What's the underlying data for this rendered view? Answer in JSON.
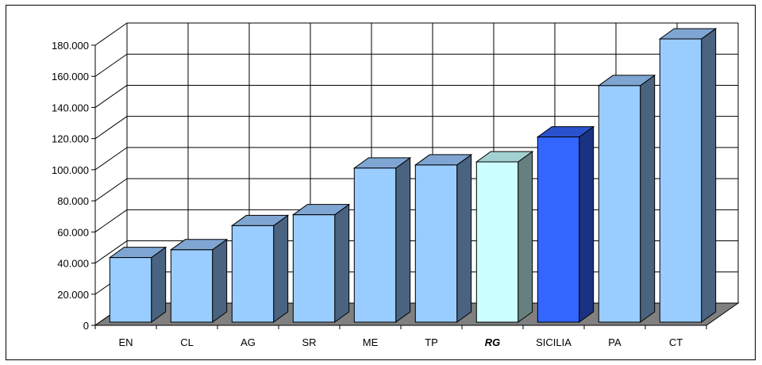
{
  "chart_data": {
    "type": "bar",
    "categories": [
      "EN",
      "CL",
      "AG",
      "SR",
      "ME",
      "TP",
      "RG",
      "SICILIA",
      "PA",
      "CT"
    ],
    "values": [
      41500,
      46500,
      62000,
      69000,
      99000,
      101000,
      103000,
      119000,
      152000,
      182000
    ],
    "highlight": {
      "RG": "#ccffff",
      "SICILIA": "#3366ff"
    },
    "emphasized_category": "RG",
    "y_ticks": [
      "0",
      "20.000",
      "40.000",
      "60.000",
      "80.000",
      "100.000",
      "120.000",
      "140.000",
      "160.000",
      "180.000"
    ],
    "ylim": [
      0,
      180000
    ],
    "grid": true,
    "legend": "none",
    "title": "",
    "xlabel": "",
    "ylabel": "",
    "colors": {
      "bar_front": "#99ccff",
      "bar_side": "#4a6380",
      "bar_top": "#7fa6d2",
      "rg_front": "#ccffff",
      "rg_side": "#66807f",
      "rg_top": "#a3d1d1",
      "sicilia_front": "#3366ff",
      "sicilia_side": "#1a3380",
      "sicilia_top": "#2952cc",
      "floor": "#808080"
    }
  }
}
